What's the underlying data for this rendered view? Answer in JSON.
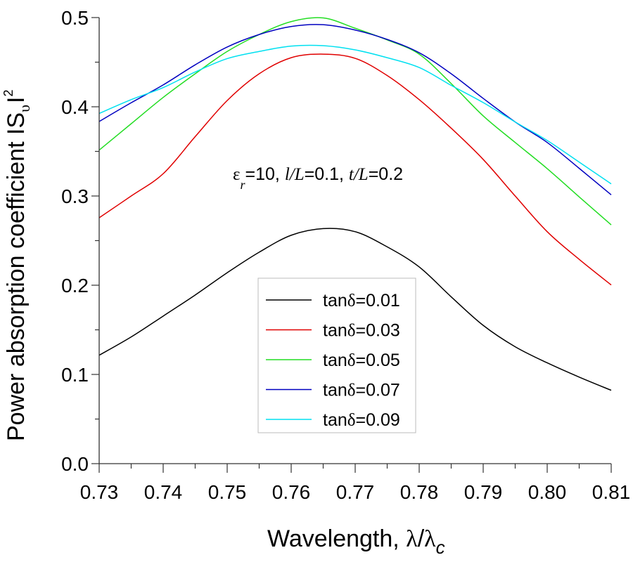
{
  "chart_data": {
    "type": "line",
    "title": "",
    "xlabel": "Wavelength, λ/λ_c",
    "xlabel_parts": {
      "main": "Wavelength, ",
      "lambda1": "λ",
      "slash": "/",
      "lambda2": "λ",
      "sub": "c"
    },
    "ylabel": "Power absorption coefficient IS_υI²",
    "ylabel_parts": {
      "main": "Power absorption coefficient IS",
      "sub": "υ",
      "bar": "I",
      "sup": "2"
    },
    "xlim": [
      0.73,
      0.81
    ],
    "ylim": [
      0.0,
      0.5
    ],
    "xticks": [
      "0.73",
      "0.74",
      "0.75",
      "0.76",
      "0.77",
      "0.78",
      "0.79",
      "0.80",
      "0.81"
    ],
    "yticks": [
      "0.0",
      "0.1",
      "0.2",
      "0.3",
      "0.4",
      "0.5"
    ],
    "grid": false,
    "legend_position": "center-bottom",
    "annotation": {
      "eps": "ε",
      "eps_sub": "r",
      "eq1": "=10, ",
      "l": "l",
      "slashL1": "/L",
      "eq2": "=0.1, ",
      "t": "t",
      "slashL2": "/L",
      "eq3": "=0.2"
    },
    "x": [
      0.73,
      0.735,
      0.74,
      0.745,
      0.75,
      0.755,
      0.76,
      0.765,
      0.77,
      0.775,
      0.78,
      0.785,
      0.79,
      0.795,
      0.8,
      0.805,
      0.81
    ],
    "series": [
      {
        "name": "tanδ=0.01",
        "label_prefix": "tan",
        "label_delta": "δ",
        "label_value": "=0.01",
        "color": "#000000",
        "values": [
          0.1215,
          0.142,
          0.1654,
          0.189,
          0.214,
          0.237,
          0.256,
          0.2635,
          0.26,
          0.243,
          0.2205,
          0.187,
          0.155,
          0.131,
          0.113,
          0.097,
          0.0822
        ]
      },
      {
        "name": "tanδ=0.03",
        "label_prefix": "tan",
        "label_delta": "δ",
        "label_value": "=0.03",
        "color": "#e00000",
        "values": [
          0.2756,
          0.3,
          0.325,
          0.3665,
          0.407,
          0.437,
          0.455,
          0.459,
          0.4543,
          0.435,
          0.408,
          0.376,
          0.341,
          0.3,
          0.26,
          0.229,
          0.2003
        ]
      },
      {
        "name": "tanδ=0.05",
        "label_prefix": "tan",
        "label_delta": "δ",
        "label_value": "=0.05",
        "color": "#22dd22",
        "values": [
          0.3514,
          0.381,
          0.4105,
          0.437,
          0.462,
          0.481,
          0.4955,
          0.4996,
          0.488,
          0.475,
          0.459,
          0.426,
          0.3898,
          0.36,
          0.3307,
          0.299,
          0.2677
        ]
      },
      {
        "name": "tanδ=0.07",
        "label_prefix": "tan",
        "label_delta": "δ",
        "label_value": "=0.07",
        "color": "#0000c0",
        "values": [
          0.3835,
          0.4045,
          0.4245,
          0.447,
          0.467,
          0.481,
          0.49,
          0.492,
          0.486,
          0.4755,
          0.4606,
          0.437,
          0.4094,
          0.383,
          0.36,
          0.331,
          0.3013
        ]
      },
      {
        "name": "tanδ=0.09",
        "label_prefix": "tan",
        "label_delta": "δ",
        "label_value": "=0.09",
        "color": "#00e0f0",
        "values": [
          0.3925,
          0.408,
          0.4215,
          0.439,
          0.454,
          0.462,
          0.468,
          0.4685,
          0.4638,
          0.455,
          0.444,
          0.424,
          0.4047,
          0.383,
          0.3622,
          0.338,
          0.3136
        ]
      }
    ]
  }
}
